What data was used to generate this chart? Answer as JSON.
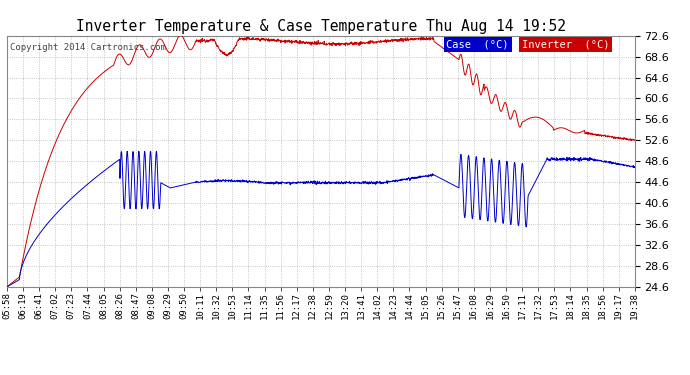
{
  "title": "Inverter Temperature & Case Temperature Thu Aug 14 19:52",
  "copyright": "Copyright 2014 Cartronics.com",
  "bg_color": "#ffffff",
  "plot_bg_color": "#ffffff",
  "grid_color": "#aaaaaa",
  "case_color": "#0000cc",
  "inverter_color": "#cc0000",
  "ylim": [
    24.6,
    72.6
  ],
  "yticks": [
    24.6,
    28.6,
    32.6,
    36.6,
    40.6,
    44.6,
    48.6,
    52.6,
    56.6,
    60.6,
    64.6,
    68.6,
    72.6
  ],
  "xtick_labels": [
    "05:58",
    "06:19",
    "06:41",
    "07:02",
    "07:23",
    "07:44",
    "08:05",
    "08:26",
    "08:47",
    "09:08",
    "09:29",
    "09:50",
    "10:11",
    "10:32",
    "10:53",
    "11:14",
    "11:35",
    "11:56",
    "12:17",
    "12:38",
    "12:59",
    "13:20",
    "13:41",
    "14:02",
    "14:23",
    "14:44",
    "15:05",
    "15:26",
    "15:47",
    "16:08",
    "16:29",
    "16:50",
    "17:11",
    "17:32",
    "17:53",
    "18:14",
    "18:35",
    "18:56",
    "19:17",
    "19:38"
  ],
  "legend_case_label": "Case  (°C)",
  "legend_inverter_label": "Inverter  (°C)"
}
